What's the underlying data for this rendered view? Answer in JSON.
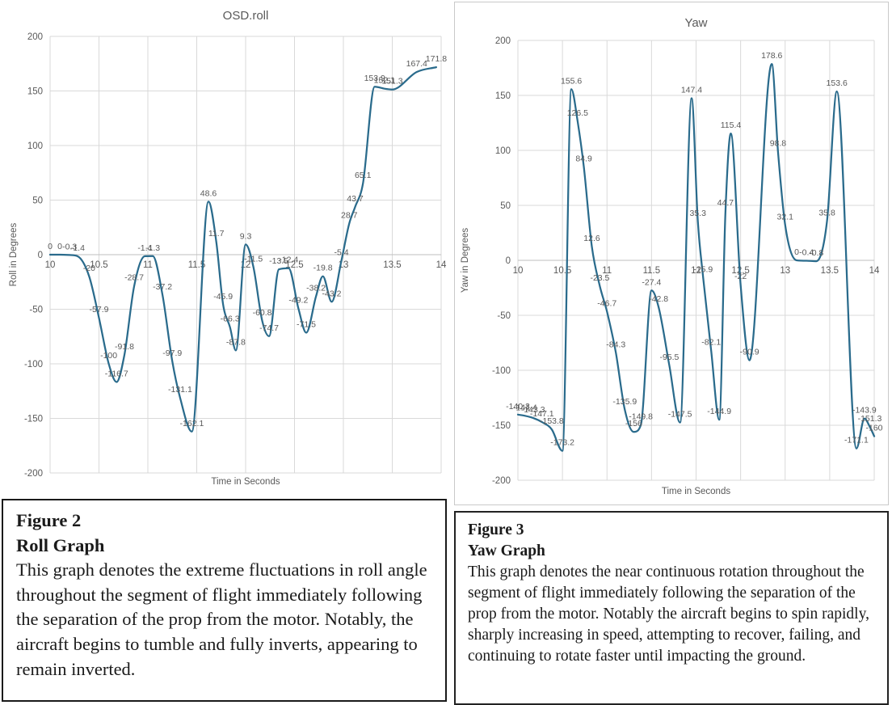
{
  "colors": {
    "line": "#2A6B8C",
    "grid": "#D9D9D9",
    "axis_line": "#BFBFBF",
    "axis_text": "#595959",
    "label_text": "#595959",
    "title_text": "#595959",
    "chart_border": "#C9C9C9",
    "caption_border": "#1A1A1A",
    "background": "#FFFFFF"
  },
  "chart_data": [
    {
      "id": "roll",
      "type": "line",
      "title": "OSD.roll",
      "xlabel": "Time in Seconds",
      "ylabel": "Roll in Degrees",
      "xlim": [
        10,
        14
      ],
      "ylim": [
        -200,
        200
      ],
      "xticks": [
        "10",
        "10.5",
        "11",
        "11.5",
        "12",
        "12.5",
        "13",
        "13.5",
        "14"
      ],
      "yticks": [
        "200",
        "150",
        "100",
        "50",
        "0",
        "-50",
        "-100",
        "-150",
        "-200"
      ],
      "grid": true,
      "legend": "none",
      "series": [
        {
          "name": "OSD.roll",
          "points": [
            [
              10.0,
              0,
              "0"
            ],
            [
              10.1,
              0,
              "0"
            ],
            [
              10.2,
              -0.3,
              "-0.3"
            ],
            [
              10.28,
              -1.4,
              "-1.4"
            ],
            [
              10.4,
              -20,
              "-20"
            ],
            [
              10.5,
              -57.9,
              "-57.9"
            ],
            [
              10.6,
              -100,
              "-100"
            ],
            [
              10.68,
              -116.7,
              "-116.7"
            ],
            [
              10.76,
              -91.8,
              "-91.8"
            ],
            [
              10.86,
              -28.7,
              "-28.7"
            ],
            [
              10.97,
              -1.4,
              "-1.4"
            ],
            [
              11.05,
              -1.3,
              "-1.3"
            ],
            [
              11.15,
              -37.2,
              "-37.2"
            ],
            [
              11.25,
              -97.9,
              "-97.9"
            ],
            [
              11.33,
              -131.1,
              "-131.1"
            ],
            [
              11.45,
              -162.1,
              "-162.1"
            ],
            [
              11.62,
              48.6,
              "48.6"
            ],
            [
              11.7,
              11.7,
              "11.7"
            ],
            [
              11.77,
              -45.9,
              "-45.9"
            ],
            [
              11.84,
              -66.3,
              "-66.3"
            ],
            [
              11.9,
              -87.8,
              "-87.8"
            ],
            [
              12.0,
              9.3,
              "9.3"
            ],
            [
              12.08,
              -11.5,
              "-11.5"
            ],
            [
              12.17,
              -60.8,
              "-60.8"
            ],
            [
              12.24,
              -74.7,
              "-74.7"
            ],
            [
              12.34,
              -13.5,
              "-13.5"
            ],
            [
              12.44,
              -12.4,
              "-12.4"
            ],
            [
              12.54,
              -49.2,
              "-49.2"
            ],
            [
              12.62,
              -71.5,
              "-71.5"
            ],
            [
              12.72,
              -38.2,
              "-38.2"
            ],
            [
              12.79,
              -19.8,
              "-19.8"
            ],
            [
              12.88,
              -43.2,
              "-43.2"
            ],
            [
              12.98,
              -5.4,
              "-5.4"
            ],
            [
              13.06,
              28.7,
              "28.7"
            ],
            [
              13.12,
              43.7,
              "43.7"
            ],
            [
              13.2,
              65.1,
              "65.1"
            ],
            [
              13.32,
              153.9,
              "153.9"
            ],
            [
              13.42,
              152.1,
              "152.1"
            ],
            [
              13.5,
              151.3,
              "151.3"
            ],
            [
              13.75,
              167.4,
              "167.4"
            ],
            [
              13.95,
              171.8,
              "171.8"
            ]
          ]
        }
      ]
    },
    {
      "id": "yaw",
      "type": "line",
      "title": "Yaw",
      "xlabel": "Time in Seconds",
      "ylabel": "Yaw in Degrees",
      "xlim": [
        10,
        14
      ],
      "ylim": [
        -200,
        200
      ],
      "xticks": [
        "10",
        "10.5",
        "11",
        "11.5",
        "12",
        "12.5",
        "13",
        "13.5",
        "14"
      ],
      "yticks": [
        "200",
        "150",
        "100",
        "50",
        "0",
        "-50",
        "-100",
        "-150",
        "-200"
      ],
      "grid": true,
      "legend": "none",
      "series": [
        {
          "name": "Yaw",
          "points": [
            [
              10.0,
              -140.3,
              "-140.3"
            ],
            [
              10.08,
              -141.4,
              "-141.4"
            ],
            [
              10.17,
              -143.3,
              "-143.3"
            ],
            [
              10.27,
              -147.1,
              "-147.1"
            ],
            [
              10.38,
              -153.8,
              "-153.8"
            ],
            [
              10.5,
              -173.2,
              "-173.2"
            ],
            [
              10.6,
              155.6,
              "155.6"
            ],
            [
              10.67,
              126.5,
              "126.5"
            ],
            [
              10.74,
              84.9,
              "84.9"
            ],
            [
              10.83,
              12.6,
              "12.6"
            ],
            [
              10.92,
              -23.5,
              "-23.5"
            ],
            [
              11.0,
              -46.7,
              "-46.7"
            ],
            [
              11.1,
              -84.3,
              "-84.3"
            ],
            [
              11.2,
              -135.9,
              "-135.9"
            ],
            [
              11.3,
              -156,
              "-156"
            ],
            [
              11.38,
              -149.8,
              "-149.8"
            ],
            [
              11.5,
              -27.4,
              "-27.4"
            ],
            [
              11.58,
              -42.8,
              "-42.8"
            ],
            [
              11.7,
              -95.5,
              "-95.5"
            ],
            [
              11.82,
              -147.5,
              "-147.5"
            ],
            [
              11.95,
              147.4,
              "147.4"
            ],
            [
              12.02,
              35.3,
              "35.3"
            ],
            [
              12.08,
              -15.9,
              "-15.9"
            ],
            [
              12.17,
              -82.1,
              "-82.1"
            ],
            [
              12.26,
              -144.9,
              "-144.9"
            ],
            [
              12.33,
              44.7,
              "44.7"
            ],
            [
              12.39,
              115.4,
              "115.4"
            ],
            [
              12.5,
              -22,
              "-22"
            ],
            [
              12.6,
              -90.9,
              "-90.9"
            ],
            [
              12.85,
              178.6,
              "178.6"
            ],
            [
              12.92,
              98.8,
              "98.8"
            ],
            [
              13.0,
              32.1,
              "32.1"
            ],
            [
              13.13,
              0,
              "0"
            ],
            [
              13.24,
              -0.4,
              "-0.4"
            ],
            [
              13.35,
              -0.8,
              "-0.8"
            ],
            [
              13.47,
              35.8,
              "35.8"
            ],
            [
              13.58,
              153.6,
              "153.6"
            ],
            [
              13.8,
              -171.1,
              "-171.1"
            ],
            [
              13.89,
              -143.9,
              "-143.9"
            ],
            [
              13.95,
              -151.3,
              "-151.3"
            ],
            [
              14.0,
              -160,
              "-160"
            ]
          ]
        }
      ]
    }
  ],
  "captions": [
    {
      "figure": "Figure 2",
      "title": "Roll Graph",
      "body": "This graph denotes the extreme fluctuations in roll angle throughout the segment of flight immediately following the separation of the prop from the motor. Notably, the aircraft begins to tumble and fully inverts, appearing to remain inverted."
    },
    {
      "figure": "Figure 3",
      "title": "Yaw Graph",
      "body": "This graph denotes the near continuous rotation throughout the segment of flight immediately following the separation of the prop from the motor. Notably the aircraft begins to spin rapidly, sharply increasing in speed, attempting to recover, failing, and continuing to rotate faster until impacting the ground."
    }
  ]
}
